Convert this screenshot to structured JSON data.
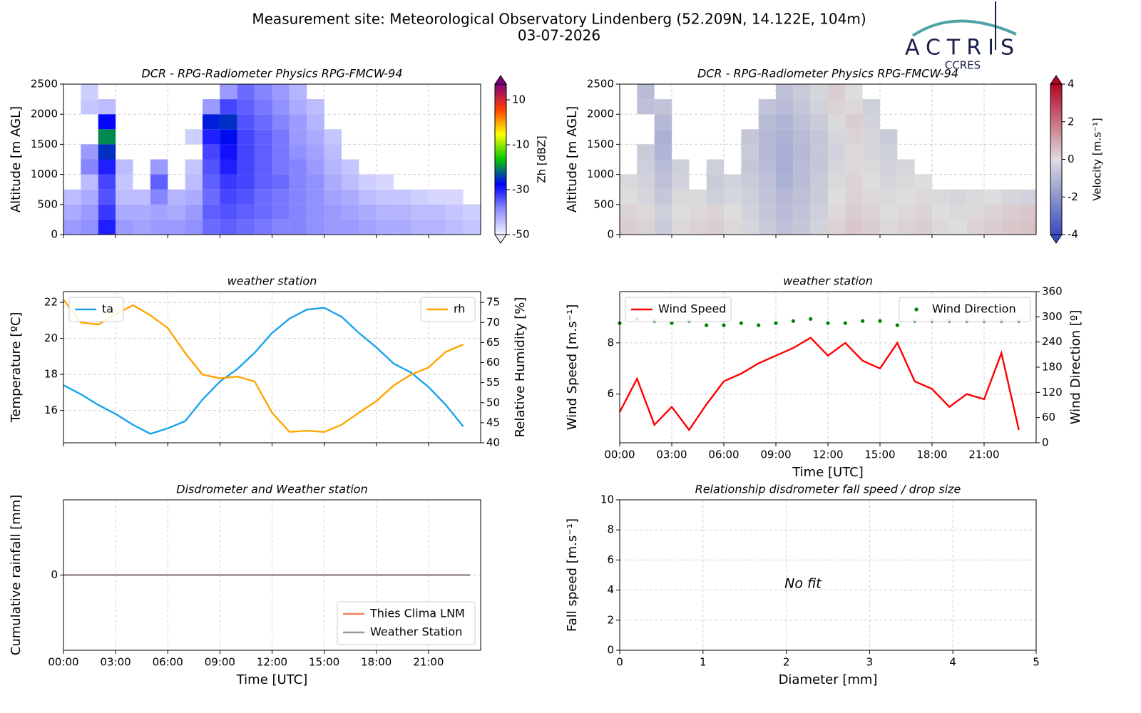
{
  "header": {
    "title": "Measurement site: Meteorological Observatory Lindenberg (52.209N, 14.122E, 104m)",
    "date": "03-07-2026"
  },
  "logo": {
    "name": "ACTRIS",
    "subtitle": "CCRES"
  },
  "chart_data": [
    {
      "type": "heatmap",
      "title": "DCR - RPG-Radiometer Physics RPG-FMCW-94",
      "ylabel": "Altitude [m AGL]",
      "zlabel": "Zh [dBZ]",
      "xlim": [
        0,
        24
      ],
      "xticks": [
        0,
        3,
        6,
        9,
        12,
        15,
        18,
        21
      ],
      "xticklabels": false,
      "ylim": [
        0,
        2500
      ],
      "yticks": [
        0,
        500,
        1000,
        1500,
        2000,
        2500
      ],
      "grid": true,
      "zlim": [
        -50,
        17
      ],
      "zticks": [
        -50,
        -30,
        -10,
        10
      ],
      "colormap": [
        "#f0f0ff",
        "#9090ff",
        "#0000ff",
        "#00c800",
        "#ffff00",
        "#ff4000",
        "#800080"
      ],
      "xbins": [
        0,
        1,
        2,
        3,
        4,
        5,
        6,
        7,
        8,
        9,
        10,
        11,
        12,
        13,
        14,
        15,
        16,
        17,
        18,
        19,
        20,
        21,
        22,
        23,
        24
      ],
      "ybins": [
        0,
        250,
        500,
        750,
        1000,
        1250,
        1500,
        1750,
        2000,
        2250,
        2500
      ],
      "z": [
        [
          -40,
          -39,
          -30,
          -40,
          -41,
          -40,
          -40,
          -39,
          -36,
          -35,
          -36,
          -37,
          -38,
          -38,
          -39,
          -40,
          -40,
          -41,
          -42,
          -42,
          -43,
          -43,
          -44,
          -45
        ],
        [
          -42,
          -40,
          -32,
          -42,
          -42,
          -41,
          -42,
          -40,
          -35,
          -34,
          -35,
          -36,
          -37,
          -38,
          -39,
          -40,
          -41,
          -42,
          -43,
          -43,
          -44,
          -44,
          -45,
          -46
        ],
        [
          -44,
          -42,
          -34,
          -44,
          -44,
          -38,
          -43,
          -42,
          -36,
          -33,
          -34,
          -36,
          -37,
          -38,
          -39,
          -41,
          -42,
          -44,
          -45,
          -45,
          -46,
          -47,
          -47,
          null
        ],
        [
          null,
          -44,
          -33,
          -45,
          null,
          -35,
          null,
          -44,
          -35,
          -32,
          -33,
          -35,
          -36,
          -38,
          -39,
          -42,
          -44,
          -46,
          -47,
          null,
          null,
          null,
          null,
          null
        ],
        [
          null,
          -38,
          -30,
          -44,
          null,
          -40,
          null,
          -45,
          -34,
          -30,
          -33,
          -35,
          -37,
          -38,
          -40,
          -43,
          -45,
          null,
          null,
          null,
          null,
          null,
          null,
          null
        ],
        [
          null,
          -40,
          -25,
          null,
          null,
          null,
          null,
          null,
          -33,
          -29,
          -33,
          -35,
          -37,
          -39,
          -41,
          -44,
          null,
          null,
          null,
          null,
          null,
          null,
          null,
          null
        ],
        [
          null,
          null,
          -20,
          null,
          null,
          null,
          null,
          -46,
          -30,
          -27,
          -33,
          -35,
          -37,
          -40,
          -42,
          -45,
          null,
          null,
          null,
          null,
          null,
          null,
          null,
          null
        ],
        [
          null,
          null,
          -28,
          null,
          null,
          null,
          null,
          null,
          -26,
          -25,
          -34,
          -36,
          -38,
          -40,
          -43,
          null,
          null,
          null,
          null,
          null,
          null,
          null,
          null,
          null
        ],
        [
          null,
          -45,
          -44,
          null,
          null,
          null,
          null,
          null,
          -40,
          -33,
          -35,
          -37,
          -39,
          -42,
          -44,
          null,
          null,
          null,
          null,
          null,
          null,
          null,
          null,
          null
        ],
        [
          null,
          -46,
          null,
          null,
          null,
          null,
          null,
          null,
          null,
          -40,
          -36,
          -38,
          -40,
          -43,
          null,
          null,
          null,
          null,
          null,
          null,
          null,
          null,
          null,
          null
        ]
      ]
    },
    {
      "type": "heatmap",
      "title": "DCR - RPG-Radiometer Physics RPG-FMCW-94",
      "ylabel": "Altitude [m AGL]",
      "zlabel": "Velocity [m.s⁻¹]",
      "xlim": [
        0,
        24
      ],
      "xticks": [
        0,
        3,
        6,
        9,
        12,
        15,
        18,
        21
      ],
      "xticklabels": false,
      "ylim": [
        0,
        2500
      ],
      "yticks": [
        0,
        500,
        1000,
        1500,
        2000,
        2500
      ],
      "grid": true,
      "zlim": [
        -4,
        4
      ],
      "zticks": [
        -4,
        -2,
        0,
        2,
        4
      ],
      "colormap": [
        "#3b4cc0",
        "#dddddd",
        "#b40426"
      ],
      "xbins": [
        0,
        1,
        2,
        3,
        4,
        5,
        6,
        7,
        8,
        9,
        10,
        11,
        12,
        13,
        14,
        15,
        16,
        17,
        18,
        19,
        20,
        21,
        22,
        23,
        24
      ],
      "ybins": [
        0,
        250,
        500,
        750,
        1000,
        1250,
        1500,
        1750,
        2000,
        2250,
        2500
      ],
      "z": [
        [
          0.3,
          0.2,
          -0.5,
          0.1,
          0.2,
          0.3,
          0.1,
          -0.2,
          -0.5,
          -0.8,
          -0.6,
          -0.3,
          0.2,
          0.4,
          0.3,
          0.1,
          0.2,
          0.3,
          0.1,
          0,
          0.2,
          0.3,
          0.4,
          0.5
        ],
        [
          0.2,
          0.1,
          -0.4,
          0,
          0.1,
          0.2,
          0,
          -0.3,
          -0.6,
          -0.9,
          -0.7,
          -0.4,
          0.1,
          0.3,
          0.2,
          0,
          0.1,
          0.2,
          0,
          -0.1,
          0.1,
          0.2,
          0.3,
          0.4
        ],
        [
          0,
          -0.2,
          -0.6,
          -0.1,
          -0.1,
          -0.4,
          -0.2,
          -0.4,
          -0.7,
          -1,
          -0.8,
          -0.5,
          0,
          0.2,
          0.1,
          -0.1,
          0,
          0.1,
          -0.1,
          -0.2,
          -0.1,
          0,
          -0.2,
          -0.3
        ],
        [
          -0.1,
          -0.3,
          -0.8,
          -0.3,
          null,
          -0.5,
          -0.3,
          -0.5,
          -0.8,
          -1.2,
          -0.9,
          -0.5,
          -0.1,
          0.2,
          0,
          -0.2,
          -0.1,
          0,
          null,
          null,
          null,
          null,
          null,
          null
        ],
        [
          null,
          -0.4,
          -0.9,
          -0.4,
          null,
          -0.4,
          null,
          -0.6,
          -0.9,
          -1.3,
          -0.9,
          -0.6,
          -0.2,
          0.1,
          -0.1,
          -0.3,
          -0.2,
          null,
          null,
          null,
          null,
          null,
          null,
          null
        ],
        [
          null,
          -0.5,
          -1.1,
          null,
          null,
          null,
          null,
          -0.5,
          -1,
          -1.3,
          -1,
          -0.6,
          -0.3,
          0.1,
          -0.2,
          -0.4,
          null,
          null,
          null,
          null,
          null,
          null,
          null,
          null
        ],
        [
          null,
          null,
          -1.2,
          null,
          null,
          null,
          null,
          -0.6,
          -1,
          -1.2,
          -0.9,
          -0.6,
          -0.2,
          0.2,
          -0.2,
          -0.5,
          null,
          null,
          null,
          null,
          null,
          null,
          null,
          null
        ],
        [
          null,
          null,
          -1,
          null,
          null,
          null,
          null,
          null,
          -0.9,
          -1.1,
          -0.8,
          -0.5,
          -0.1,
          0.3,
          -0.3,
          null,
          null,
          null,
          null,
          null,
          null,
          null,
          null,
          null
        ],
        [
          null,
          -0.8,
          -0.7,
          null,
          null,
          null,
          null,
          null,
          -0.7,
          -0.9,
          -0.6,
          -0.3,
          0.2,
          0.1,
          -0.4,
          null,
          null,
          null,
          null,
          null,
          null,
          null,
          null,
          null
        ],
        [
          null,
          -0.9,
          null,
          null,
          null,
          null,
          null,
          null,
          null,
          -0.8,
          -0.5,
          -0.2,
          0.3,
          0,
          null,
          null,
          null,
          null,
          null,
          null,
          null,
          null,
          null,
          null
        ]
      ]
    },
    {
      "type": "line",
      "title": "weather station",
      "ylabel": "Temperature [ºC]",
      "y2label": "Relative Humidity [%]",
      "xlim": [
        0,
        24
      ],
      "xticks": [
        0,
        3,
        6,
        9,
        12,
        15,
        18,
        21
      ],
      "xticklabels": false,
      "ylim": [
        14.2,
        22.6
      ],
      "yticks": [
        16,
        18,
        20,
        22
      ],
      "y2lim": [
        40,
        77.7
      ],
      "y2ticks": [
        40,
        45,
        50,
        55,
        60,
        65,
        70,
        75
      ],
      "grid": true,
      "x": [
        0,
        1,
        2,
        3,
        4,
        5,
        6,
        7,
        8,
        9,
        10,
        11,
        12,
        13,
        14,
        15,
        16,
        17,
        18,
        19,
        20,
        21,
        22,
        23
      ],
      "series": [
        {
          "name": "ta",
          "color": "#1aa3ee",
          "legend": "upper left",
          "values": [
            17.4,
            16.9,
            16.3,
            15.8,
            15.2,
            14.7,
            15.0,
            15.4,
            16.6,
            17.6,
            18.3,
            19.2,
            20.3,
            21.1,
            21.6,
            21.7,
            21.2,
            20.3,
            19.5,
            18.6,
            18.1,
            17.3,
            16.3,
            15.1
          ]
        },
        {
          "name": "rh",
          "color": "#ffa500",
          "axis": "y2",
          "legend": "upper right",
          "values": [
            75.7,
            70,
            69.5,
            72.1,
            74.3,
            71.8,
            68.6,
            62.4,
            57,
            56.1,
            56.5,
            55.3,
            47.5,
            42.7,
            43,
            42.7,
            44.5,
            47.5,
            50.4,
            54.3,
            57,
            58.8,
            62.7,
            64.5
          ]
        }
      ]
    },
    {
      "type": "line",
      "title": "weather station",
      "ylabel": "Wind Speed [m.s⁻¹]",
      "y2label": "Wind Direction [º]",
      "xlabel": "Time [UTC]",
      "xlim": [
        0,
        24
      ],
      "xticks": [
        {
          "value": 0,
          "label": "00:00"
        },
        {
          "value": 3,
          "label": "03:00"
        },
        {
          "value": 6,
          "label": "06:00"
        },
        {
          "value": 9,
          "label": "09:00"
        },
        {
          "value": 12,
          "label": "12:00"
        },
        {
          "value": 15,
          "label": "15:00"
        },
        {
          "value": 18,
          "label": "18:00"
        },
        {
          "value": 21,
          "label": "21:00"
        }
      ],
      "ylim": [
        4.1,
        10
      ],
      "yticks": [
        6,
        8
      ],
      "y2lim": [
        0,
        360
      ],
      "y2ticks": [
        0,
        60,
        120,
        180,
        240,
        300,
        360
      ],
      "grid": true,
      "x": [
        0,
        1,
        2,
        3,
        4,
        5,
        6,
        7,
        8,
        9,
        10,
        11,
        12,
        13,
        14,
        15,
        16,
        17,
        18,
        19,
        20,
        21,
        22,
        23
      ],
      "series": [
        {
          "name": "Wind Speed",
          "color": "#ff0000",
          "legend": "upper left",
          "values": [
            5.3,
            6.6,
            4.8,
            5.5,
            4.6,
            5.6,
            6.5,
            6.8,
            7.2,
            7.5,
            7.8,
            8.2,
            7.5,
            8.0,
            7.3,
            7.0,
            8.0,
            6.5,
            6.2,
            5.5,
            6.0,
            5.8,
            7.6,
            4.6
          ]
        },
        {
          "name": "Wind Direction",
          "color": "#008000",
          "axis": "y2",
          "mode": "markers",
          "legend": "upper right",
          "values": [
            285,
            295,
            290,
            285,
            290,
            280,
            280,
            285,
            280,
            285,
            290,
            295,
            285,
            285,
            290,
            290,
            280,
            290,
            290,
            290,
            290,
            290,
            290,
            290
          ]
        }
      ]
    },
    {
      "type": "line",
      "title": "Disdrometer and Weather station",
      "ylabel": "Cumulative rainfall [mm]",
      "xlabel": "Time [UTC]",
      "xlim": [
        0,
        24
      ],
      "xticks": [
        {
          "value": 0,
          "label": "00:00"
        },
        {
          "value": 3,
          "label": "03:00"
        },
        {
          "value": 6,
          "label": "06:00"
        },
        {
          "value": 9,
          "label": "09:00"
        },
        {
          "value": 12,
          "label": "12:00"
        },
        {
          "value": 15,
          "label": "15:00"
        },
        {
          "value": 18,
          "label": "18:00"
        },
        {
          "value": 21,
          "label": "21:00"
        }
      ],
      "ylim": [
        -0.055,
        0.055
      ],
      "yticks": [
        0
      ],
      "grid": true,
      "x": [
        0,
        23.4
      ],
      "series": [
        {
          "name": "Thies Clima LNM",
          "color": "#f4845f",
          "legend": "lower right",
          "values": [
            0,
            0
          ]
        },
        {
          "name": "Weather Station",
          "color": "#999999",
          "legend": "lower right",
          "values": [
            0,
            0
          ]
        }
      ]
    },
    {
      "type": "scatter",
      "title": "Relationship disdrometer fall speed / drop size",
      "ylabel": "Fall speed [m.s⁻¹]",
      "xlabel": "Diameter [mm]",
      "annotation": "No fit",
      "xlim": [
        0,
        5
      ],
      "xticks": [
        0,
        1,
        2,
        3,
        4,
        5
      ],
      "ylim": [
        0,
        10
      ],
      "yticks": [
        0,
        2,
        4,
        6,
        8,
        10
      ],
      "grid": true
    }
  ]
}
